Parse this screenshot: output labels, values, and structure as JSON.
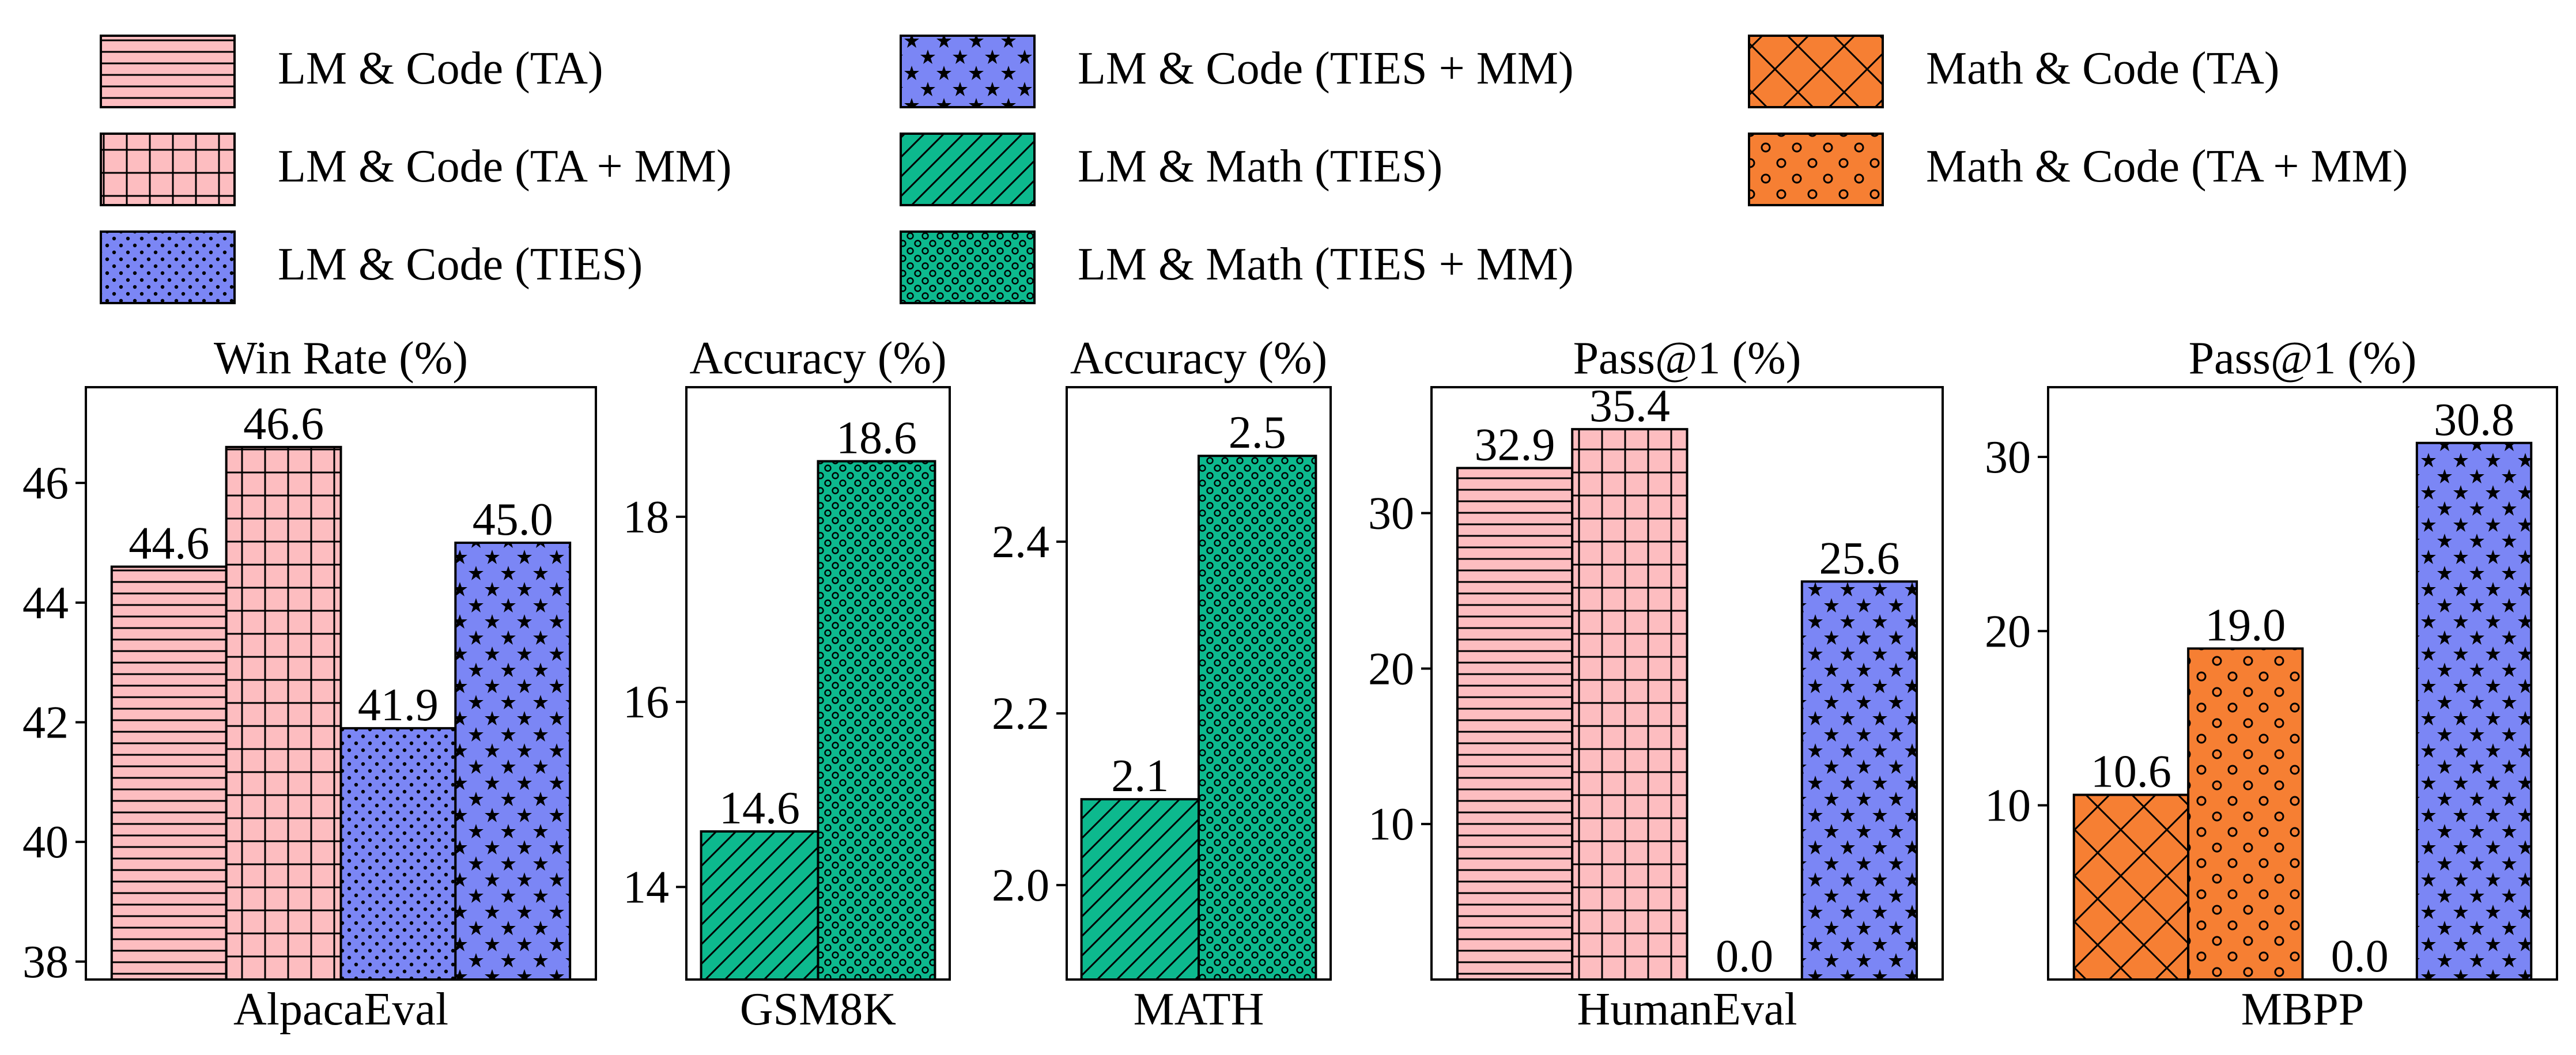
{
  "legend": [
    {
      "id": "lmcode-ta",
      "label": "LM & Code (TA)",
      "color": "#FDBDC0",
      "pattern": "hlines"
    },
    {
      "id": "lmcode-tamm",
      "label": "LM & Code (TA + MM)",
      "color": "#FDBDC0",
      "pattern": "grid"
    },
    {
      "id": "lmcode-ties",
      "label": "LM & Code (TIES)",
      "color": "#7B86F5",
      "pattern": "dots"
    },
    {
      "id": "lmcode-tiesmm",
      "label": "LM & Code (TIES + MM)",
      "color": "#7B86F5",
      "pattern": "stars"
    },
    {
      "id": "lmmath-ties",
      "label": "LM & Math (TIES)",
      "color": "#0DB98E",
      "pattern": "diag"
    },
    {
      "id": "lmmath-tiesmm",
      "label": "LM & Math (TIES + MM)",
      "color": "#0DB98E",
      "pattern": "rings"
    },
    {
      "id": "mathcode-ta",
      "label": "Math & Code (TA)",
      "color": "#F67F33",
      "pattern": "cross"
    },
    {
      "id": "mathcode-tamm",
      "label": "Math & Code (TA + MM)",
      "color": "#F67F33",
      "pattern": "circles"
    }
  ],
  "chart_data": [
    {
      "type": "bar",
      "title": "Win Rate (%)",
      "xlabel": "AlpacaEval",
      "ylim": [
        37.7,
        47.6
      ],
      "yticks": [
        38,
        40,
        42,
        44,
        46
      ],
      "series": [
        "lmcode-ta",
        "lmcode-tamm",
        "lmcode-ties",
        "lmcode-tiesmm"
      ],
      "values": [
        44.6,
        46.6,
        41.9,
        45.0
      ],
      "labels": [
        "44.6",
        "46.6",
        "41.9",
        "45.0"
      ]
    },
    {
      "type": "bar",
      "title": "Accuracy (%)",
      "xlabel": "GSM8K",
      "ylim": [
        13.0,
        19.4
      ],
      "yticks": [
        14,
        16,
        18
      ],
      "series": [
        "lmmath-ties",
        "lmmath-tiesmm"
      ],
      "values": [
        14.6,
        18.6
      ],
      "labels": [
        "14.6",
        "18.6"
      ]
    },
    {
      "type": "bar",
      "title": "Accuracy (%)",
      "xlabel": "MATH",
      "ylim": [
        1.89,
        2.58
      ],
      "yticks": [
        "2.0",
        "2.2",
        "2.4"
      ],
      "series": [
        "lmmath-ties",
        "lmmath-tiesmm"
      ],
      "values": [
        2.1,
        2.5
      ],
      "labels": [
        "2.1",
        "2.5"
      ]
    },
    {
      "type": "bar",
      "title": "Pass@1 (%)",
      "xlabel": "HumanEval",
      "ylim": [
        0,
        38.1
      ],
      "yticks": [
        10,
        20,
        30
      ],
      "series": [
        "lmcode-ta",
        "lmcode-tamm",
        "lmcode-ties",
        "lmcode-tiesmm"
      ],
      "values": [
        32.9,
        35.4,
        0.0,
        25.6
      ],
      "labels": [
        "32.9",
        "35.4",
        "0.0",
        "25.6"
      ]
    },
    {
      "type": "bar",
      "title": "Pass@1 (%)",
      "xlabel": "MBPP",
      "ylim": [
        0,
        34.0
      ],
      "yticks": [
        10,
        20,
        30
      ],
      "series": [
        "mathcode-ta",
        "mathcode-tamm",
        "lmcode-ties",
        "lmcode-tiesmm"
      ],
      "values": [
        10.6,
        19.0,
        0.0,
        30.8
      ],
      "labels": [
        "10.6",
        "19.0",
        "0.0",
        "30.8"
      ]
    }
  ]
}
